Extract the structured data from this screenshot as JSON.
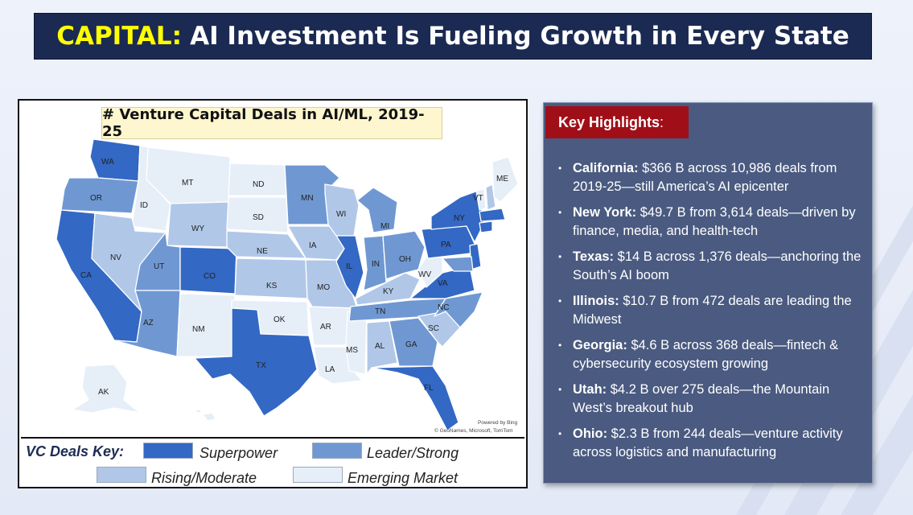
{
  "title": {
    "accent": "CAPITAL:",
    "rest": "AI Investment Is Fueling Growth in Every State"
  },
  "map": {
    "title": "# Venture Capital Deals in AI/ML, 2019-25",
    "credit_line1": "Powered by Bing",
    "credit_line2": "© GeoNames, Microsoft, TomTom",
    "colors": {
      "superpower": "#3368c4",
      "leader": "#6f98d3",
      "rising": "#b0c7e8",
      "emerging": "#e6eef8"
    },
    "states": [
      {
        "abbr": "WA",
        "tier": "superpower"
      },
      {
        "abbr": "OR",
        "tier": "leader"
      },
      {
        "abbr": "CA",
        "tier": "superpower"
      },
      {
        "abbr": "ID",
        "tier": "emerging"
      },
      {
        "abbr": "NV",
        "tier": "rising"
      },
      {
        "abbr": "MT",
        "tier": "emerging"
      },
      {
        "abbr": "WY",
        "tier": "rising"
      },
      {
        "abbr": "UT",
        "tier": "leader"
      },
      {
        "abbr": "AZ",
        "tier": "leader"
      },
      {
        "abbr": "CO",
        "tier": "superpower"
      },
      {
        "abbr": "NM",
        "tier": "emerging"
      },
      {
        "abbr": "ND",
        "tier": "emerging"
      },
      {
        "abbr": "SD",
        "tier": "emerging"
      },
      {
        "abbr": "NE",
        "tier": "rising"
      },
      {
        "abbr": "KS",
        "tier": "rising"
      },
      {
        "abbr": "OK",
        "tier": "emerging"
      },
      {
        "abbr": "TX",
        "tier": "superpower"
      },
      {
        "abbr": "MN",
        "tier": "leader"
      },
      {
        "abbr": "IA",
        "tier": "rising"
      },
      {
        "abbr": "MO",
        "tier": "rising"
      },
      {
        "abbr": "AR",
        "tier": "emerging"
      },
      {
        "abbr": "LA",
        "tier": "emerging"
      },
      {
        "abbr": "WI",
        "tier": "rising"
      },
      {
        "abbr": "IL",
        "tier": "superpower"
      },
      {
        "abbr": "MS",
        "tier": "emerging"
      },
      {
        "abbr": "MI",
        "tier": "leader"
      },
      {
        "abbr": "IN",
        "tier": "leader"
      },
      {
        "abbr": "KY",
        "tier": "rising"
      },
      {
        "abbr": "TN",
        "tier": "leader"
      },
      {
        "abbr": "AL",
        "tier": "rising"
      },
      {
        "abbr": "OH",
        "tier": "leader"
      },
      {
        "abbr": "GA",
        "tier": "leader"
      },
      {
        "abbr": "FL",
        "tier": "superpower"
      },
      {
        "abbr": "SC",
        "tier": "rising"
      },
      {
        "abbr": "NC",
        "tier": "leader"
      },
      {
        "abbr": "VA",
        "tier": "superpower"
      },
      {
        "abbr": "WV",
        "tier": "emerging"
      },
      {
        "abbr": "PA",
        "tier": "superpower"
      },
      {
        "abbr": "NY",
        "tier": "superpower"
      },
      {
        "abbr": "VT",
        "tier": "emerging"
      },
      {
        "abbr": "ME",
        "tier": "emerging"
      },
      {
        "abbr": "AK",
        "tier": "emerging"
      }
    ]
  },
  "key": {
    "title": "VC Deals Key:",
    "superpower": "Superpower",
    "leader": "Leader/Strong",
    "rising": "Rising/Moderate",
    "emerging": "Emerging Market"
  },
  "highlights": {
    "header": "Key Highlights",
    "header_suffix": ":",
    "items": [
      {
        "state": "California:",
        "text": " $366 B across 10,986 deals from 2019-25—still America’s AI epicenter"
      },
      {
        "state": "New York:",
        "text": " $49.7 B from 3,614 deals—driven by finance, media, and health-tech"
      },
      {
        "state": "Texas:",
        "text": " $14 B across 1,376 deals—anchoring the South’s AI boom"
      },
      {
        "state": "Illinois:",
        "text": " $10.7 B from 472 deals are leading the Midwest"
      },
      {
        "state": "Georgia:",
        "text": " $4.6 B across 368 deals—fintech & cybersecurity ecosystem growing"
      },
      {
        "state": "Utah:",
        "text": " $4.2 B over 275 deals—the Mountain West’s breakout hub"
      },
      {
        "state": "Ohio:",
        "text": " $2.3 B from 244 deals—venture activity across logistics and manufacturing"
      }
    ]
  }
}
